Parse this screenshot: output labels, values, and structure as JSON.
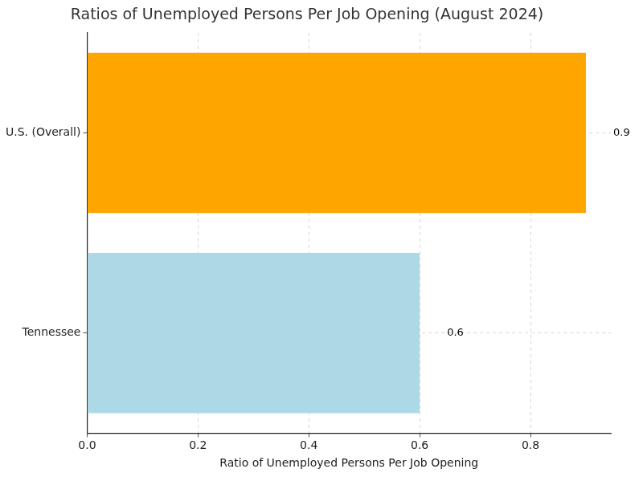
{
  "chart_data": {
    "type": "bar",
    "orientation": "horizontal",
    "title": "Ratios of Unemployed Persons Per Job Opening (August 2024)",
    "x_label": "Ratio of Unemployed Persons Per Job Opening",
    "categories": [
      "U.S. (Overall)",
      "Tennessee"
    ],
    "values": [
      0.9,
      0.6
    ],
    "colors": [
      "#ffa500",
      "#add8e6"
    ],
    "xlim": [
      0,
      0.945
    ],
    "xticks": [
      {
        "value": 0,
        "label": "0.0"
      },
      {
        "value": 0.2,
        "label": "0.2"
      },
      {
        "value": 0.4,
        "label": "0.4"
      },
      {
        "value": 0.6,
        "label": "0.6"
      },
      {
        "value": 0.8,
        "label": "0.8"
      }
    ],
    "grid": true,
    "data_labels": true
  }
}
